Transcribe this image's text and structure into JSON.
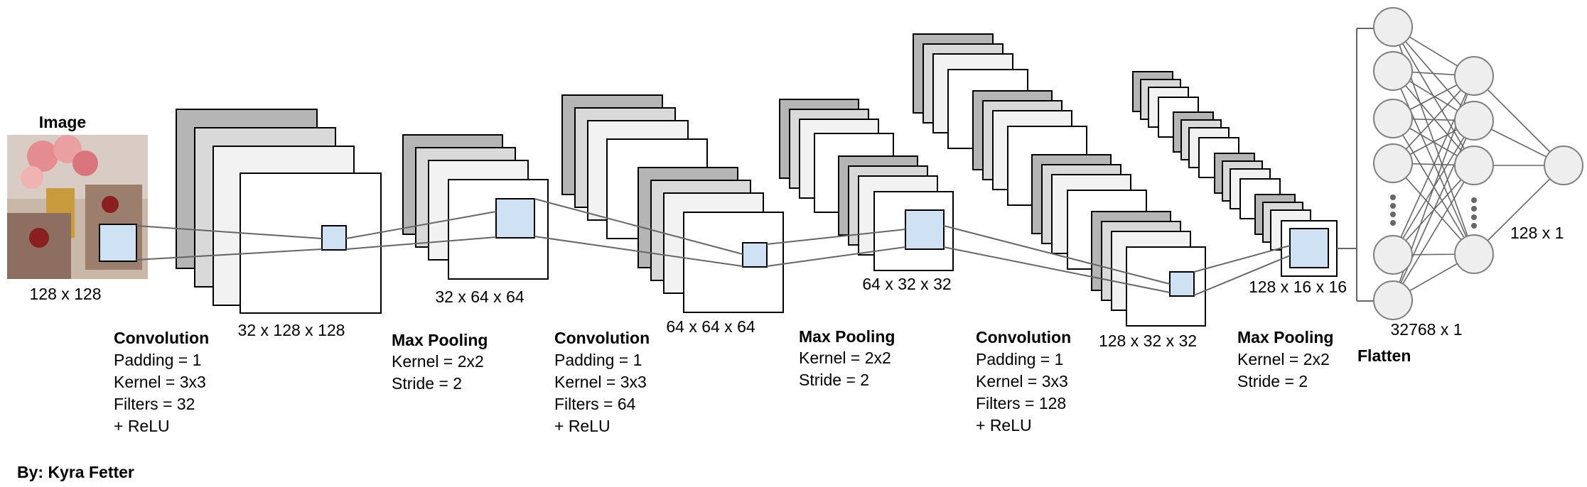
{
  "image_label": "Image",
  "image_dim": "128 x 128",
  "author": "By: Kyra Fetter",
  "feature_maps": [
    {
      "dim": "32 x 128 x 128"
    },
    {
      "dim": "32 x 64 x 64"
    },
    {
      "dim": "64 x 64 x 64"
    },
    {
      "dim": "64 x 32 x 32"
    },
    {
      "dim": "128 x 32 x 32"
    },
    {
      "dim": "128 x 16 x 16"
    }
  ],
  "layers": [
    {
      "title": "Convolution",
      "lines": [
        "Padding = 1",
        "Kernel = 3x3",
        "Filters = 32",
        "+ ReLU"
      ]
    },
    {
      "title": "Max Pooling",
      "lines": [
        "Kernel = 2x2",
        "Stride = 2"
      ]
    },
    {
      "title": "Convolution",
      "lines": [
        "Padding = 1",
        "Kernel = 3x3",
        "Filters = 64",
        "+ ReLU"
      ]
    },
    {
      "title": "Max Pooling",
      "lines": [
        "Kernel = 2x2",
        "Stride = 2"
      ]
    },
    {
      "title": "Convolution",
      "lines": [
        "Padding = 1",
        "Kernel = 3x3",
        "Filters = 128",
        "+ ReLU"
      ]
    },
    {
      "title": "Max Pooling",
      "lines": [
        "Kernel = 2x2",
        "Stride = 2"
      ]
    }
  ],
  "flatten": {
    "label": "Flatten",
    "dim": "32768 x 1"
  },
  "output": {
    "dim": "128 x 1"
  },
  "colors": {
    "stroke": "#000000",
    "dark_gray": "#b5b5b5",
    "mid_gray": "#d9d9d9",
    "light_gray": "#f2f2f2",
    "kernel_fill": "#cfe2f3",
    "node_fill": "#eeeeee",
    "node_stroke": "#7f7f7f",
    "line": "#666666"
  }
}
